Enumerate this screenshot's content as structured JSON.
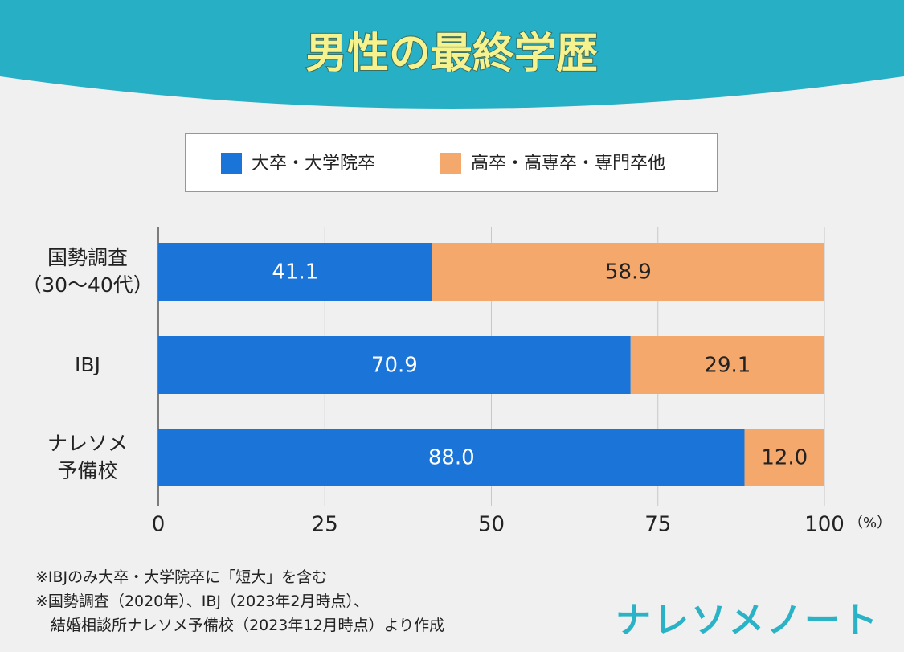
{
  "chart_data": {
    "type": "stacked-bar-horizontal",
    "title": "男性の最終学歴",
    "categories": [
      "国勢調査\n（30～40代）",
      "IBJ",
      "ナレソメ\n予備校"
    ],
    "series": [
      {
        "name": "大卒・大学院卒",
        "color": "#1b74d8",
        "values": [
          41.1,
          70.9,
          88
        ],
        "value_labels": [
          "41.1",
          "70.9",
          "88.0"
        ],
        "label_color": "#ffffff"
      },
      {
        "name": "高卒・高専卒・専門卒他",
        "color": "#f4a86c",
        "values": [
          58.9,
          29.1,
          12
        ],
        "value_labels": [
          "58.9",
          "29.1",
          "12.0"
        ],
        "label_color": "#222222"
      }
    ],
    "xlim": [
      0,
      100
    ],
    "xticks": [
      0,
      25,
      50,
      75,
      100
    ],
    "x_unit": "（%）",
    "grid": true,
    "notes": [
      "※IBJのみ大卒・大学院卒に「短大」を含む",
      "※国勢調査（2020年）、IBJ（2023年2月時点）、\n　結婚相談所ナレソメ予備校（2023年12月時点）より作成"
    ],
    "brand": "ナレソメノート"
  }
}
